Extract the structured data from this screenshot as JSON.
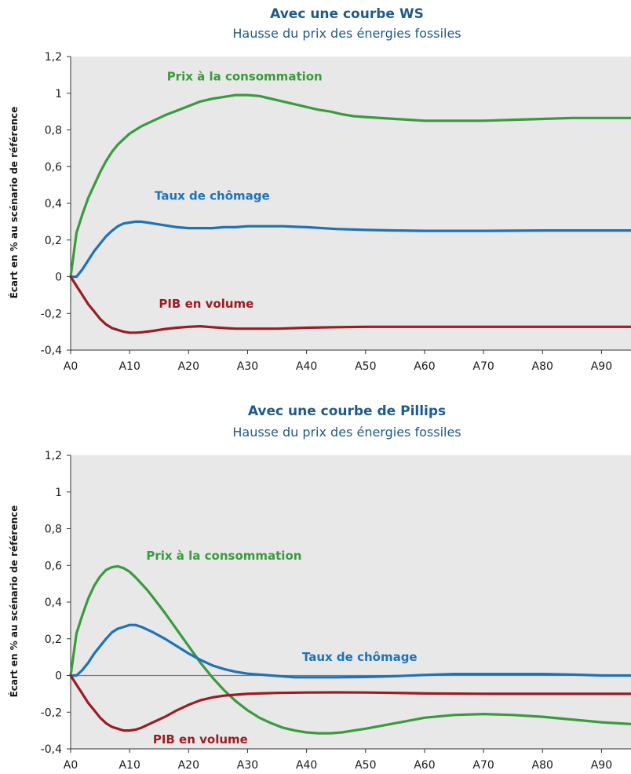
{
  "colors": {
    "plot_background": "#e8e8e8",
    "title": "#1f5a8c",
    "prix": "#3a9a3e",
    "chomage": "#1d72b8",
    "pib": "#9b1c23",
    "zero_line": "#7a7a7a"
  },
  "chart_data": [
    {
      "type": "line",
      "title": "Avec une courbe WS",
      "subtitle": "Hausse du prix des énergies fossiles",
      "ylabel": "Écart en % au scénario de référence",
      "xlabel": "",
      "ylim": [
        -0.4,
        1.2
      ],
      "xlim": [
        0,
        95
      ],
      "y_ticks": [
        -0.4,
        -0.2,
        0,
        0.2,
        0.4,
        0.6,
        0.8,
        1,
        1.2
      ],
      "y_tick_labels": [
        "-0,4",
        "-0,2",
        "0",
        "0,2",
        "0,4",
        "0,6",
        "0,8",
        "1",
        "1,2"
      ],
      "x_ticks": [
        0,
        10,
        20,
        30,
        40,
        50,
        60,
        70,
        80,
        90
      ],
      "x_tick_labels": [
        "A0",
        "A10",
        "A20",
        "A30",
        "A40",
        "A50",
        "A60",
        "A70",
        "A80",
        "A90"
      ],
      "grid": false,
      "series": [
        {
          "key": "prix",
          "name": "Prix à la consommation",
          "color": "#3a9a3e",
          "x": [
            0,
            1,
            2,
            3,
            4,
            5,
            6,
            7,
            8,
            9,
            10,
            12,
            14,
            16,
            18,
            20,
            22,
            24,
            26,
            28,
            30,
            32,
            34,
            36,
            38,
            40,
            42,
            44,
            46,
            48,
            50,
            55,
            60,
            65,
            70,
            75,
            80,
            85,
            90,
            95
          ],
          "y": [
            0,
            0.24,
            0.34,
            0.43,
            0.5,
            0.57,
            0.63,
            0.68,
            0.72,
            0.75,
            0.78,
            0.82,
            0.85,
            0.88,
            0.905,
            0.93,
            0.955,
            0.97,
            0.98,
            0.99,
            0.99,
            0.985,
            0.97,
            0.955,
            0.94,
            0.925,
            0.91,
            0.9,
            0.885,
            0.875,
            0.87,
            0.86,
            0.85,
            0.85,
            0.85,
            0.855,
            0.86,
            0.865,
            0.865,
            0.865
          ]
        },
        {
          "key": "chomage",
          "name": "Taux de chômage",
          "color": "#1d72b8",
          "x": [
            0,
            1,
            2,
            3,
            4,
            5,
            6,
            7,
            8,
            9,
            10,
            11,
            12,
            13,
            14,
            16,
            18,
            20,
            22,
            24,
            26,
            28,
            30,
            32,
            34,
            36,
            38,
            40,
            45,
            50,
            55,
            60,
            70,
            80,
            95
          ],
          "y": [
            0,
            0.0,
            0.04,
            0.09,
            0.14,
            0.18,
            0.22,
            0.25,
            0.275,
            0.29,
            0.295,
            0.3,
            0.3,
            0.295,
            0.29,
            0.28,
            0.27,
            0.265,
            0.265,
            0.265,
            0.27,
            0.27,
            0.275,
            0.275,
            0.275,
            0.275,
            0.272,
            0.27,
            0.26,
            0.255,
            0.252,
            0.25,
            0.25,
            0.252,
            0.252
          ]
        },
        {
          "key": "pib",
          "name": "PIB en volume",
          "color": "#9b1c23",
          "x": [
            0,
            1,
            2,
            3,
            4,
            5,
            6,
            7,
            8,
            9,
            10,
            11,
            12,
            14,
            16,
            18,
            20,
            22,
            24,
            26,
            28,
            30,
            35,
            40,
            45,
            50,
            60,
            70,
            80,
            95
          ],
          "y": [
            0,
            -0.05,
            -0.1,
            -0.15,
            -0.19,
            -0.23,
            -0.26,
            -0.28,
            -0.29,
            -0.3,
            -0.305,
            -0.305,
            -0.303,
            -0.295,
            -0.285,
            -0.278,
            -0.273,
            -0.27,
            -0.275,
            -0.28,
            -0.283,
            -0.283,
            -0.283,
            -0.278,
            -0.275,
            -0.273,
            -0.273,
            -0.273,
            -0.273,
            -0.273
          ]
        }
      ]
    },
    {
      "type": "line",
      "title": "Avec une courbe de Pillips",
      "subtitle": "Hausse du prix des énergies fossiles",
      "ylabel": "Écart en % au scénario de référence",
      "xlabel": "",
      "ylim": [
        -0.4,
        1.2
      ],
      "xlim": [
        0,
        95
      ],
      "y_ticks": [
        -0.4,
        -0.2,
        0,
        0.2,
        0.4,
        0.6,
        0.8,
        1,
        1.2
      ],
      "y_tick_labels": [
        "-0,4",
        "-0,2",
        "0",
        "0,2",
        "0,4",
        "0,6",
        "0,8",
        "1",
        "1,2"
      ],
      "x_ticks": [
        0,
        10,
        20,
        30,
        40,
        50,
        60,
        70,
        80,
        90
      ],
      "x_tick_labels": [
        "A0",
        "A10",
        "A20",
        "A30",
        "A40",
        "A50",
        "A60",
        "A70",
        "A80",
        "A90"
      ],
      "grid": false,
      "series": [
        {
          "key": "prix",
          "name": "Prix à la consommation",
          "color": "#3a9a3e",
          "x": [
            0,
            1,
            2,
            3,
            4,
            5,
            6,
            7,
            8,
            9,
            10,
            11,
            12,
            13,
            14,
            16,
            18,
            20,
            22,
            24,
            26,
            28,
            30,
            32,
            34,
            36,
            38,
            40,
            42,
            44,
            46,
            48,
            50,
            55,
            60,
            65,
            70,
            75,
            80,
            85,
            90,
            95
          ],
          "y": [
            0,
            0.23,
            0.33,
            0.42,
            0.49,
            0.54,
            0.575,
            0.59,
            0.595,
            0.585,
            0.565,
            0.535,
            0.5,
            0.465,
            0.425,
            0.34,
            0.25,
            0.16,
            0.07,
            -0.01,
            -0.08,
            -0.14,
            -0.19,
            -0.23,
            -0.26,
            -0.285,
            -0.3,
            -0.31,
            -0.315,
            -0.315,
            -0.31,
            -0.3,
            -0.29,
            -0.26,
            -0.23,
            -0.215,
            -0.21,
            -0.215,
            -0.225,
            -0.24,
            -0.255,
            -0.265
          ]
        },
        {
          "key": "chomage",
          "name": "Taux de chômage",
          "color": "#1d72b8",
          "x": [
            0,
            1,
            2,
            3,
            4,
            5,
            6,
            7,
            8,
            9,
            10,
            11,
            12,
            13,
            14,
            16,
            18,
            20,
            22,
            24,
            26,
            28,
            30,
            32,
            34,
            36,
            38,
            40,
            45,
            50,
            55,
            60,
            65,
            70,
            75,
            80,
            85,
            90,
            95
          ],
          "y": [
            0,
            0.0,
            0.03,
            0.07,
            0.12,
            0.16,
            0.2,
            0.235,
            0.255,
            0.265,
            0.275,
            0.275,
            0.265,
            0.25,
            0.235,
            0.2,
            0.16,
            0.12,
            0.085,
            0.055,
            0.035,
            0.02,
            0.01,
            0.005,
            0.0,
            -0.005,
            -0.01,
            -0.01,
            -0.01,
            -0.008,
            -0.004,
            0.003,
            0.008,
            0.008,
            0.008,
            0.008,
            0.005,
            0.0,
            0.0
          ]
        },
        {
          "key": "pib",
          "name": "PIB en volume",
          "color": "#9b1c23",
          "x": [
            0,
            1,
            2,
            3,
            4,
            5,
            6,
            7,
            8,
            9,
            10,
            11,
            12,
            13,
            14,
            16,
            18,
            20,
            22,
            24,
            26,
            28,
            30,
            32,
            35,
            40,
            45,
            50,
            55,
            60,
            70,
            80,
            90,
            95
          ],
          "y": [
            0,
            -0.05,
            -0.1,
            -0.15,
            -0.19,
            -0.23,
            -0.26,
            -0.28,
            -0.29,
            -0.3,
            -0.3,
            -0.295,
            -0.285,
            -0.27,
            -0.255,
            -0.225,
            -0.19,
            -0.16,
            -0.135,
            -0.12,
            -0.11,
            -0.105,
            -0.1,
            -0.098,
            -0.095,
            -0.093,
            -0.092,
            -0.093,
            -0.095,
            -0.098,
            -0.1,
            -0.1,
            -0.1,
            -0.1
          ]
        }
      ]
    }
  ]
}
